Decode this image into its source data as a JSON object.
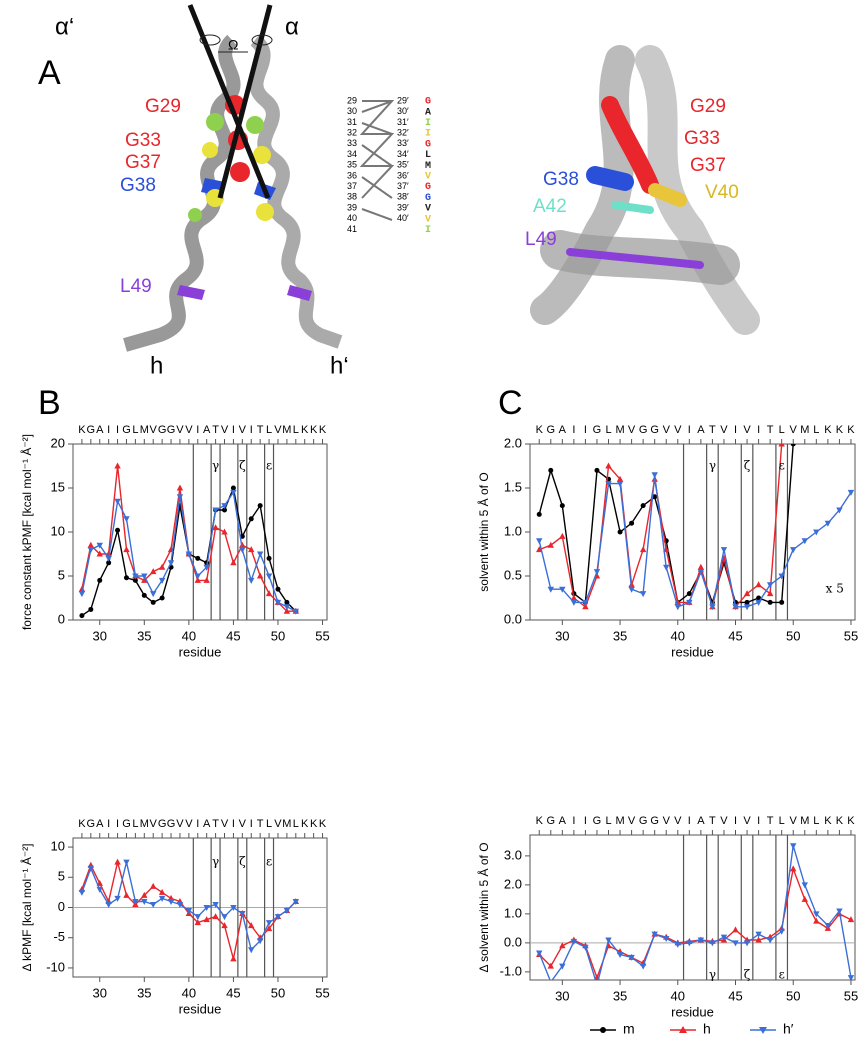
{
  "panel_a": {
    "label": "A",
    "axis_labels": [
      "α‘",
      "Ω",
      "α"
    ],
    "left_residues": [
      "G29",
      "G33",
      "G37",
      "G38",
      "L49"
    ],
    "chain_labels": [
      "h",
      "h‘"
    ],
    "right_residues": [
      "G29",
      "G33",
      "G37",
      "G38",
      "V40",
      "A42",
      "L49"
    ],
    "table": {
      "left": [
        "29",
        "30",
        "31",
        "32",
        "33",
        "34",
        "35",
        "36",
        "37",
        "38",
        "39",
        "40",
        "41"
      ],
      "right": [
        "29′",
        "30′",
        "31′",
        "32′",
        "33′",
        "34′",
        "35′",
        "36′",
        "37′",
        "38′",
        "39′",
        "40′"
      ],
      "letters": [
        "G",
        "A",
        "I",
        "I",
        "G",
        "L",
        "M",
        "V",
        "G",
        "G",
        "V",
        "V",
        "I"
      ]
    }
  },
  "panel_labels": [
    "B",
    "C"
  ],
  "chart_data": [
    {
      "type": "line",
      "ylabel": "force constant kPMF [kcal mol⁻¹ Å⁻²]",
      "xlabel": "residue",
      "x": [
        28,
        29,
        30,
        31,
        32,
        33,
        34,
        35,
        36,
        37,
        38,
        39,
        40,
        41,
        42,
        43,
        44,
        45,
        46,
        47,
        48,
        49,
        50,
        51,
        52
      ],
      "series": [
        {
          "name": "m",
          "color": "#000000",
          "marker": "circle",
          "values": [
            0.5,
            1.2,
            4.5,
            6.5,
            10.2,
            4.8,
            4.5,
            2.8,
            2.0,
            2.5,
            6,
            13,
            7.5,
            7,
            6.5,
            12.5,
            12.5,
            15,
            9.5,
            11.5,
            13,
            7,
            3.5,
            2,
            1
          ]
        },
        {
          "name": "h",
          "color": "#e8262b",
          "marker": "triangle-up",
          "values": [
            3.5,
            8.5,
            7.5,
            7.5,
            17.5,
            8,
            5,
            4.5,
            5.5,
            6,
            8,
            15,
            7.5,
            4.5,
            4.5,
            10.5,
            10,
            6.5,
            8.5,
            8,
            5,
            3,
            2,
            1,
            1
          ]
        },
        {
          "name": "h′",
          "color": "#3b6fd8",
          "marker": "triangle-down",
          "values": [
            3,
            8,
            8.5,
            7,
            13.5,
            11.5,
            5,
            5,
            3,
            4.5,
            6.5,
            14,
            7.5,
            5,
            6,
            12.5,
            13,
            14.5,
            8,
            4.5,
            7.5,
            5,
            2,
            1.5,
            1
          ]
        }
      ],
      "xlim": [
        27,
        55.5
      ],
      "ylim": [
        0,
        20
      ],
      "xticks": [
        30,
        35,
        40,
        45,
        50,
        55
      ],
      "yticks": [
        0,
        5,
        10,
        15,
        20
      ],
      "sequence_residues": [
        28,
        29,
        30,
        31,
        32,
        33,
        34,
        35,
        36,
        37,
        38,
        39,
        40,
        41,
        42,
        43,
        44,
        45,
        46,
        47,
        48,
        49,
        50,
        51,
        52,
        53,
        54,
        55
      ],
      "sequence": [
        "K",
        "G",
        "A",
        "I",
        "I",
        "G",
        "L",
        "M",
        "V",
        "G",
        "G",
        "V",
        "V",
        "I",
        "A",
        "T",
        "V",
        "I",
        "V",
        "I",
        "T",
        "L",
        "V",
        "M",
        "L",
        "K",
        "K",
        "K"
      ],
      "vlines": [
        40.5,
        42.5,
        43.5,
        45.5,
        46.5,
        48.5,
        49.5
      ],
      "annotations": [
        {
          "x": 43,
          "y": 17.5,
          "text": "γ"
        },
        {
          "x": 46,
          "y": 17.5,
          "text": "ζ"
        },
        {
          "x": 49,
          "y": 17.5,
          "text": "ε"
        }
      ],
      "zero_line": false
    },
    {
      "type": "line",
      "ylabel": "solvent within 5 Å of O",
      "xlabel": "residue",
      "x": [
        28,
        29,
        30,
        31,
        32,
        33,
        34,
        35,
        36,
        37,
        38,
        39,
        40,
        41,
        42,
        43,
        44,
        45,
        46,
        47,
        48,
        49,
        50,
        51,
        52,
        53,
        54,
        55
      ],
      "series": [
        {
          "name": "m",
          "color": "#000000",
          "marker": "circle",
          "values": [
            1.2,
            1.7,
            1.3,
            0.3,
            0.2,
            1.7,
            1.6,
            1.0,
            1.1,
            1.3,
            1.4,
            0.9,
            0.2,
            0.3,
            0.55,
            0.2,
            0.65,
            0.2,
            0.2,
            0.25,
            0.2,
            0.2,
            2.0,
            null,
            null,
            null,
            null,
            null
          ]
        },
        {
          "name": "h",
          "color": "#e8262b",
          "marker": "triangle-up",
          "values": [
            0.8,
            0.85,
            0.95,
            0.25,
            0.15,
            0.5,
            1.75,
            1.6,
            0.4,
            0.8,
            1.6,
            0.8,
            0.2,
            0.2,
            0.6,
            0.15,
            0.7,
            0.15,
            0.3,
            0.4,
            0.3,
            2.0,
            null,
            null,
            null,
            null,
            null,
            null
          ]
        },
        {
          "name": "h′",
          "color": "#3b6fd8",
          "marker": "triangle-down",
          "values": [
            0.9,
            0.35,
            0.35,
            0.2,
            0.2,
            0.55,
            1.55,
            1.55,
            0.35,
            0.3,
            1.65,
            0.6,
            0.15,
            0.2,
            0.55,
            0.15,
            0.8,
            0.15,
            0.15,
            0.2,
            0.4,
            0.5,
            0.8,
            0.9,
            1.0,
            1.1,
            1.25,
            1.45
          ]
        }
      ],
      "xlim": [
        27.2,
        55.35
      ],
      "ylim": [
        0,
        2
      ],
      "xticks": [
        30,
        35,
        40,
        45,
        50,
        55
      ],
      "yticks": [
        {
          "value": 0,
          "label": "0.0"
        },
        {
          "value": 0.5,
          "label": "0.5"
        },
        {
          "value": 1,
          "label": "1.0"
        },
        {
          "value": 1.5,
          "label": "1.5"
        },
        {
          "value": 2,
          "label": "2.0"
        }
      ],
      "sequence_residues": [
        28,
        29,
        30,
        31,
        32,
        33,
        34,
        35,
        36,
        37,
        38,
        39,
        40,
        41,
        42,
        43,
        44,
        45,
        46,
        47,
        48,
        49,
        50,
        51,
        52,
        53,
        54,
        55
      ],
      "sequence": [
        "K",
        "G",
        "A",
        "I",
        "I",
        "G",
        "L",
        "M",
        "V",
        "G",
        "G",
        "V",
        "V",
        "I",
        "A",
        "T",
        "V",
        "I",
        "V",
        "I",
        "T",
        "L",
        "V",
        "M",
        "L",
        "K",
        "K",
        "K"
      ],
      "vlines": [
        40.5,
        42.5,
        43.5,
        45.5,
        46.5,
        48.5,
        49.5
      ],
      "annotations": [
        {
          "x": 43,
          "y": 1.75,
          "text": "γ"
        },
        {
          "x": 46,
          "y": 1.75,
          "text": "ζ"
        },
        {
          "x": 49,
          "y": 1.75,
          "text": "ε"
        },
        {
          "x": 53.6,
          "y": 0.35,
          "text": "x 5"
        }
      ],
      "zero_line": false
    },
    {
      "type": "line",
      "ylabel": "Δ kPMF [kcal mol⁻¹ Å⁻²]",
      "xlabel": "residue",
      "x": [
        28,
        29,
        30,
        31,
        32,
        33,
        34,
        35,
        36,
        37,
        38,
        39,
        40,
        41,
        42,
        43,
        44,
        45,
        46,
        47,
        48,
        49,
        50,
        51,
        52
      ],
      "series": [
        {
          "name": "h",
          "color": "#e8262b",
          "marker": "triangle-up",
          "values": [
            3,
            7,
            4,
            1,
            7.5,
            2,
            0.5,
            2,
            3.5,
            2.5,
            1.5,
            1,
            -1,
            -2.5,
            -2,
            -1.5,
            -3,
            -8.5,
            -1,
            -3,
            -5,
            -3.5,
            -1.5,
            -0.5,
            1
          ]
        },
        {
          "name": "h′",
          "color": "#3b6fd8",
          "marker": "triangle-down",
          "values": [
            2.5,
            6.5,
            3,
            0.5,
            1.5,
            7.5,
            1,
            1,
            0.5,
            1.5,
            1,
            0.5,
            -0.5,
            -1.5,
            0,
            0.5,
            -1.5,
            0,
            -1,
            -7,
            -5.5,
            -2.5,
            -1.5,
            -0.5,
            1
          ]
        }
      ],
      "xlim": [
        27,
        55.5
      ],
      "ylim": [
        -11.5,
        11.5
      ],
      "xticks": [
        30,
        35,
        40,
        45,
        50,
        55
      ],
      "yticks": [
        -10,
        -5,
        0,
        5,
        10
      ],
      "sequence_residues": [
        28,
        29,
        30,
        31,
        32,
        33,
        34,
        35,
        36,
        37,
        38,
        39,
        40,
        41,
        42,
        43,
        44,
        45,
        46,
        47,
        48,
        49,
        50,
        51,
        52,
        53,
        54,
        55
      ],
      "sequence": [
        "K",
        "G",
        "A",
        "I",
        "I",
        "G",
        "L",
        "M",
        "V",
        "G",
        "G",
        "V",
        "V",
        "I",
        "A",
        "T",
        "V",
        "I",
        "V",
        "I",
        "T",
        "L",
        "V",
        "M",
        "L",
        "K",
        "K",
        "K"
      ],
      "vlines": [
        40.5,
        42.5,
        43.5,
        45.5,
        46.5,
        48.5,
        49.5
      ],
      "annotations": [
        {
          "x": 43,
          "y": 7.5,
          "text": "γ"
        },
        {
          "x": 46,
          "y": 7.5,
          "text": "ζ"
        },
        {
          "x": 49,
          "y": 7.5,
          "text": "ε"
        }
      ],
      "zero_line": true
    },
    {
      "type": "line",
      "ylabel": "Δ solvent within 5 Å of O",
      "xlabel": "residue",
      "x": [
        28,
        29,
        30,
        31,
        32,
        33,
        34,
        35,
        36,
        37,
        38,
        39,
        40,
        41,
        42,
        43,
        44,
        45,
        46,
        47,
        48,
        49,
        50,
        51,
        52,
        53,
        54,
        55
      ],
      "series": [
        {
          "name": "h",
          "color": "#e8262b",
          "marker": "triangle-up",
          "values": [
            -0.4,
            -0.8,
            -0.1,
            0.1,
            -0.1,
            -1.2,
            -0.1,
            -0.3,
            -0.5,
            -0.7,
            0.3,
            0.2,
            0.0,
            0.05,
            0.1,
            0.05,
            0.1,
            0.45,
            0.1,
            0.1,
            0.2,
            0.5,
            2.55,
            1.5,
            0.75,
            0.5,
            1.0,
            0.8
          ]
        },
        {
          "name": "h′",
          "color": "#3b6fd8",
          "marker": "triangle-down",
          "values": [
            -0.35,
            -1.35,
            -0.8,
            0.05,
            -0.15,
            -1.45,
            0.1,
            -0.4,
            -0.5,
            -0.8,
            0.3,
            0.15,
            -0.05,
            0.0,
            0.1,
            0.0,
            0.2,
            0.0,
            0.0,
            0.3,
            0.1,
            0.4,
            3.35,
            2.0,
            1.0,
            0.6,
            1.1,
            -1.2
          ]
        }
      ],
      "xlim": [
        27.2,
        55.35
      ],
      "ylim": [
        -1.28,
        3.72
      ],
      "xticks": [
        30,
        35,
        40,
        45,
        50,
        55
      ],
      "yticks": [
        {
          "value": -1,
          "label": "-1.0"
        },
        {
          "value": 0,
          "label": "0.0"
        },
        {
          "value": 1,
          "label": "1.0"
        },
        {
          "value": 2,
          "label": "2.0"
        },
        {
          "value": 3,
          "label": "3.0"
        }
      ],
      "sequence_residues": [
        28,
        29,
        30,
        31,
        32,
        33,
        34,
        35,
        36,
        37,
        38,
        39,
        40,
        41,
        42,
        43,
        44,
        45,
        46,
        47,
        48,
        49,
        50,
        51,
        52,
        53,
        54,
        55
      ],
      "sequence": [
        "K",
        "G",
        "A",
        "I",
        "I",
        "G",
        "L",
        "M",
        "V",
        "G",
        "G",
        "V",
        "V",
        "I",
        "A",
        "T",
        "V",
        "I",
        "V",
        "I",
        "T",
        "L",
        "V",
        "M",
        "L",
        "K",
        "K",
        "K"
      ],
      "vlines": [
        40.5,
        42.5,
        43.5,
        45.5,
        46.5,
        48.5,
        49.5
      ],
      "annotations": [
        {
          "x": 43,
          "y": -1.1,
          "text": "γ"
        },
        {
          "x": 46,
          "y": -1.1,
          "text": "ζ"
        },
        {
          "x": 49,
          "y": -1.1,
          "text": "ε"
        }
      ],
      "zero_line": true
    }
  ]
}
